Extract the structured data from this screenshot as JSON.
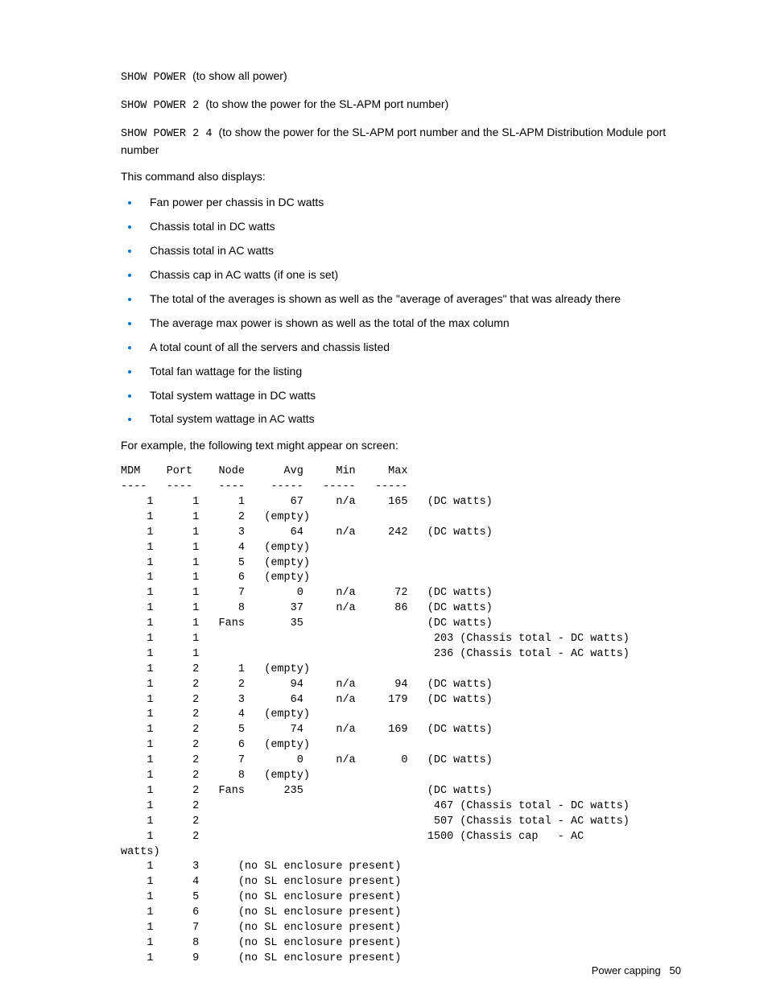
{
  "para1": {
    "cmd": "SHOW POWER ",
    "desc": "(to show all power)"
  },
  "para2": {
    "cmd": "SHOW POWER 2 ",
    "desc": "(to show the power for the SL-APM port number)"
  },
  "para3": {
    "cmd": "SHOW POWER 2 4 ",
    "desc": "(to show the power for the SL-APM port number and the SL-APM Distribution Module port number"
  },
  "para4": "This command also displays:",
  "bullets": [
    "Fan power per chassis in DC watts",
    "Chassis total in DC watts",
    "Chassis total in AC watts",
    "Chassis cap in AC watts (if one is set)",
    "The total of the averages is shown as well as the \"average of averages\" that was already there",
    "The average max power is shown as well as the total of the max column",
    "A total count of all the servers and chassis listed",
    "Total fan wattage for the listing",
    "Total system wattage in DC watts",
    "Total system wattage in AC watts"
  ],
  "para5": "For example, the following text might appear on screen:",
  "preBlock": "MDM    Port    Node      Avg     Min     Max\n----   ----    ----    -----   -----   -----\n    1      1      1       67     n/a     165   (DC watts)\n    1      1      2   (empty)\n    1      1      3       64     n/a     242   (DC watts)\n    1      1      4   (empty)\n    1      1      5   (empty)\n    1      1      6   (empty)\n    1      1      7        0     n/a      72   (DC watts)\n    1      1      8       37     n/a      86   (DC watts)\n    1      1   Fans       35                   (DC watts)\n    1      1                                    203 (Chassis total - DC watts)\n    1      1                                    236 (Chassis total - AC watts)\n    1      2      1   (empty)\n    1      2      2       94     n/a      94   (DC watts)\n    1      2      3       64     n/a     179   (DC watts)\n    1      2      4   (empty)\n    1      2      5       74     n/a     169   (DC watts)\n    1      2      6   (empty)\n    1      2      7        0     n/a       0   (DC watts)\n    1      2      8   (empty)\n    1      2   Fans      235                   (DC watts)\n    1      2                                    467 (Chassis total - DC watts)\n    1      2                                    507 (Chassis total - AC watts)\n    1      2                                   1500 (Chassis cap   - AC \nwatts)\n    1      3      (no SL enclosure present)\n    1      4      (no SL enclosure present)\n    1      5      (no SL enclosure present)\n    1      6      (no SL enclosure present)\n    1      7      (no SL enclosure present)\n    1      8      (no SL enclosure present)\n    1      9      (no SL enclosure present)",
  "footer": {
    "section": "Power capping",
    "pageNum": "50"
  },
  "colors": {
    "bullet": "#0073cf",
    "text": "#000000",
    "background": "#ffffff"
  }
}
